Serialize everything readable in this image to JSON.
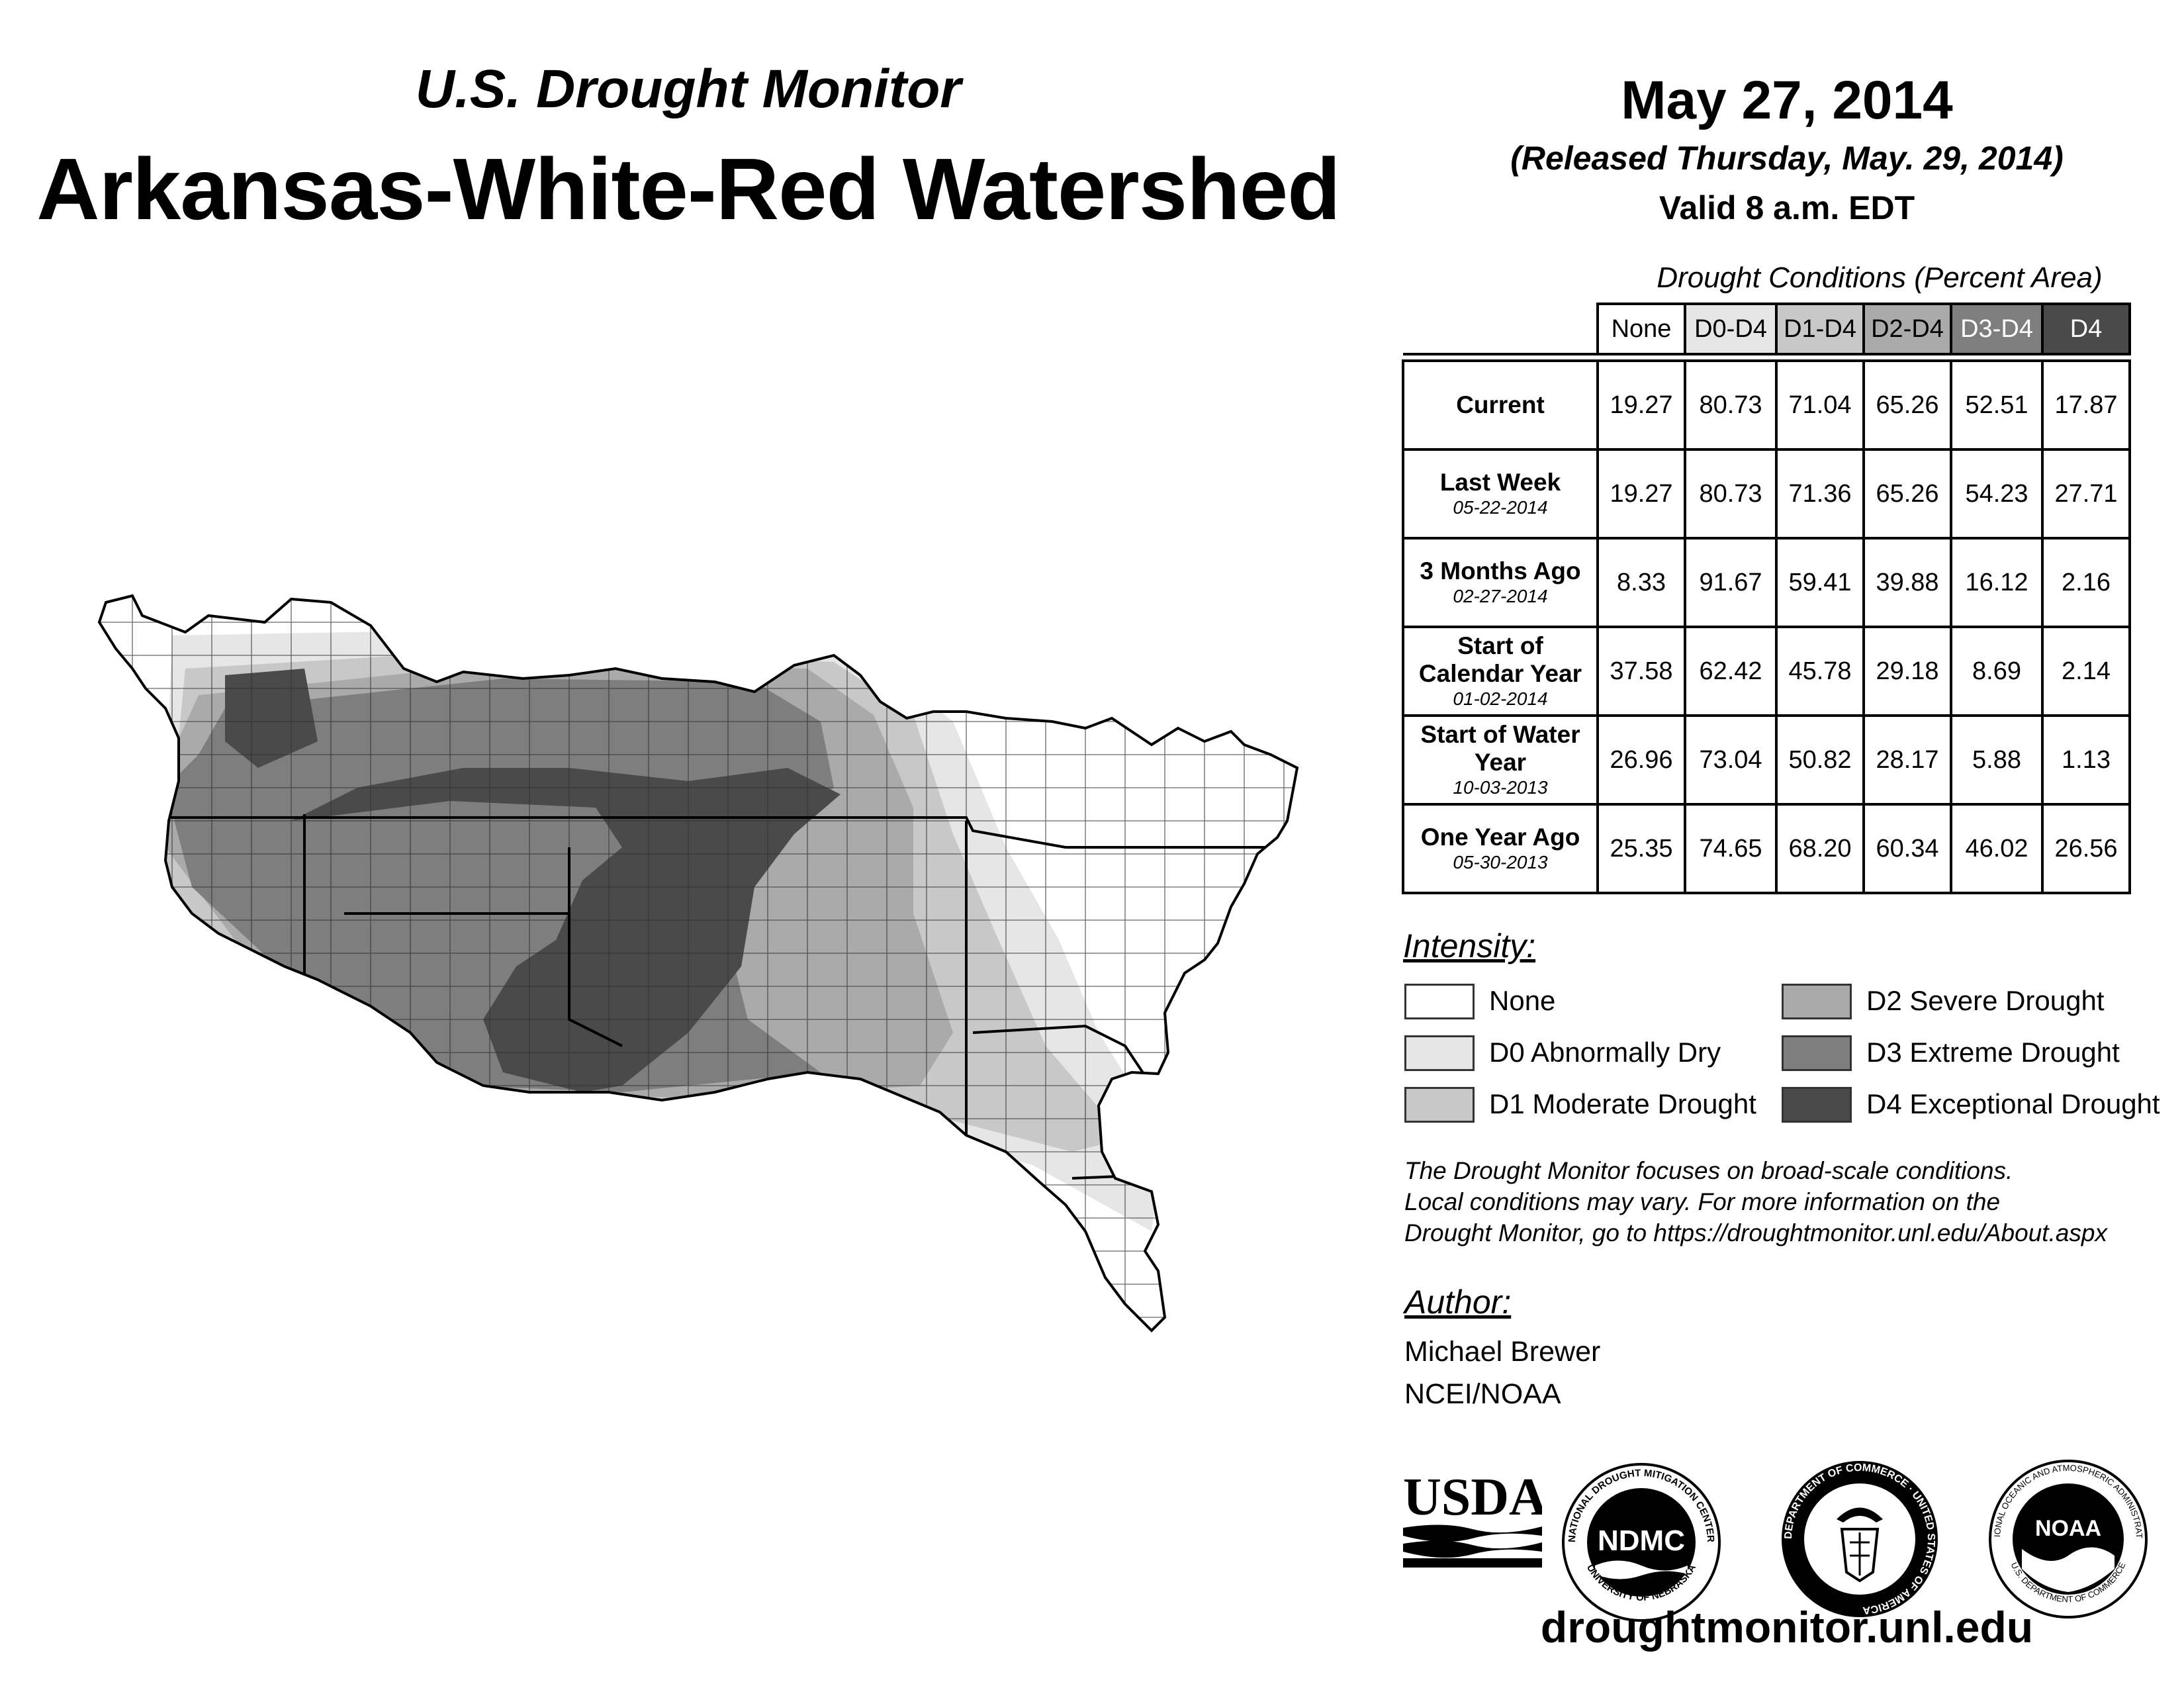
{
  "header": {
    "subtitle": "U.S. Drought Monitor",
    "title": "Arkansas-White-Red Watershed",
    "date": "May 27, 2014",
    "released": "(Released Thursday, May. 29, 2014)",
    "valid": "Valid 8 a.m. EDT"
  },
  "table": {
    "caption": "Drought Conditions (Percent Area)",
    "columns": [
      "None",
      "D0-D4",
      "D1-D4",
      "D2-D4",
      "D3-D4",
      "D4"
    ],
    "rows": [
      {
        "label": "Current",
        "date": "",
        "values": [
          "19.27",
          "80.73",
          "71.04",
          "65.26",
          "52.51",
          "17.87"
        ]
      },
      {
        "label": "Last Week",
        "date": "05-22-2014",
        "values": [
          "19.27",
          "80.73",
          "71.36",
          "65.26",
          "54.23",
          "27.71"
        ]
      },
      {
        "label": "3 Months Ago",
        "date": "02-27-2014",
        "values": [
          "8.33",
          "91.67",
          "59.41",
          "39.88",
          "16.12",
          "2.16"
        ]
      },
      {
        "label": "Start of Calendar Year",
        "date": "01-02-2014",
        "values": [
          "37.58",
          "62.42",
          "45.78",
          "29.18",
          "8.69",
          "2.14"
        ]
      },
      {
        "label": "Start of Water Year",
        "date": "10-03-2013",
        "values": [
          "26.96",
          "73.04",
          "50.82",
          "28.17",
          "5.88",
          "1.13"
        ]
      },
      {
        "label": "One Year Ago",
        "date": "05-30-2013",
        "values": [
          "25.35",
          "74.65",
          "68.20",
          "60.34",
          "46.02",
          "26.56"
        ]
      }
    ]
  },
  "legend": {
    "title": "Intensity:",
    "items": [
      {
        "label": "None",
        "color": "#ffffff"
      },
      {
        "label": "D0 Abnormally Dry",
        "color": "#e6e6e6"
      },
      {
        "label": "D1 Moderate Drought",
        "color": "#c8c8c8"
      },
      {
        "label": "D2 Severe Drought",
        "color": "#aaaaaa"
      },
      {
        "label": "D3 Extreme Drought",
        "color": "#7e7e7e"
      },
      {
        "label": "D4 Exceptional Drought",
        "color": "#4a4a4a"
      }
    ]
  },
  "note": {
    "line1": "The Drought Monitor focuses on broad-scale conditions.",
    "line2": "Local conditions may vary. For more information on the",
    "line3": "Drought Monitor, go to https://droughtmonitor.unl.edu/About.aspx"
  },
  "author": {
    "heading": "Author:",
    "name": "Michael Brewer",
    "org": "NCEI/NOAA"
  },
  "logos": {
    "usda": "USDA",
    "ndmc": "NDMC",
    "ndmc_ring_top": "NATIONAL DROUGHT MITIGATION CENTER",
    "ndmc_ring_bottom": "UNIVERSITY OF NEBRASKA",
    "doc_ring": "DEPARTMENT OF COMMERCE · UNITED STATES OF AMERICA",
    "noaa": "NOAA",
    "noaa_ring_top": "NATIONAL OCEANIC AND ATMOSPHERIC ADMINISTRATION",
    "noaa_ring_bottom": "U.S. DEPARTMENT OF COMMERCE"
  },
  "website": "droughtmonitor.unl.edu"
}
